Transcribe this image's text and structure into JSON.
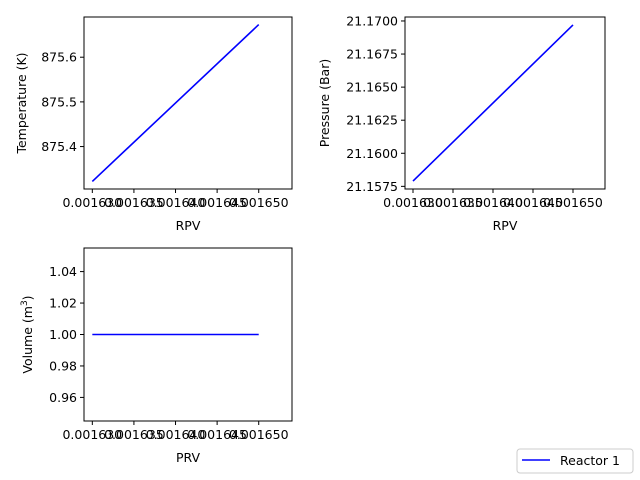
{
  "chart_data": [
    {
      "type": "line",
      "xlabel": "RPV",
      "ylabel": "Temperature (K)",
      "x_ticks": [
        "0.001630",
        "0.001635",
        "0.001640",
        "0.001645",
        "0.001650"
      ],
      "y_ticks": [
        "875.4",
        "875.5",
        "875.6"
      ],
      "xlim": [
        0.001629,
        0.001654
      ],
      "ylim": [
        875.305,
        875.69
      ],
      "series": [
        {
          "color": "#0000ff",
          "x": [
            0.00163,
            0.00165
          ],
          "y": [
            875.322,
            875.673
          ]
        }
      ]
    },
    {
      "type": "line",
      "xlabel": "RPV",
      "ylabel": "Pressure (Bar)",
      "x_ticks": [
        "0.001630",
        "0.001635",
        "0.001640",
        "0.001645",
        "0.001650"
      ],
      "y_ticks": [
        "21.1575",
        "21.1600",
        "21.1625",
        "21.1650",
        "21.1675",
        "21.1700"
      ],
      "xlim": [
        0.001629,
        0.001654
      ],
      "ylim": [
        21.1573,
        21.1703
      ],
      "series": [
        {
          "color": "#0000ff",
          "x": [
            0.00163,
            0.00165
          ],
          "y": [
            21.1579,
            21.1697
          ]
        }
      ]
    },
    {
      "type": "line",
      "xlabel": "PRV",
      "ylabel": "Volume (m",
      "ylabel_sup": "3",
      "ylabel_end": ")",
      "x_ticks": [
        "0.001630",
        "0.001635",
        "0.001640",
        "0.001645",
        "0.001650"
      ],
      "y_ticks": [
        "0.96",
        "0.98",
        "1.00",
        "1.02",
        "1.04"
      ],
      "xlim": [
        0.001629,
        0.001654
      ],
      "ylim": [
        0.945,
        1.055
      ],
      "series": [
        {
          "color": "#0000ff",
          "x": [
            0.00163,
            0.00165
          ],
          "y": [
            1.0,
            1.0
          ]
        }
      ]
    }
  ],
  "legend": {
    "label": "Reactor 1",
    "color": "#0000ff",
    "placement": "bottom-right"
  }
}
